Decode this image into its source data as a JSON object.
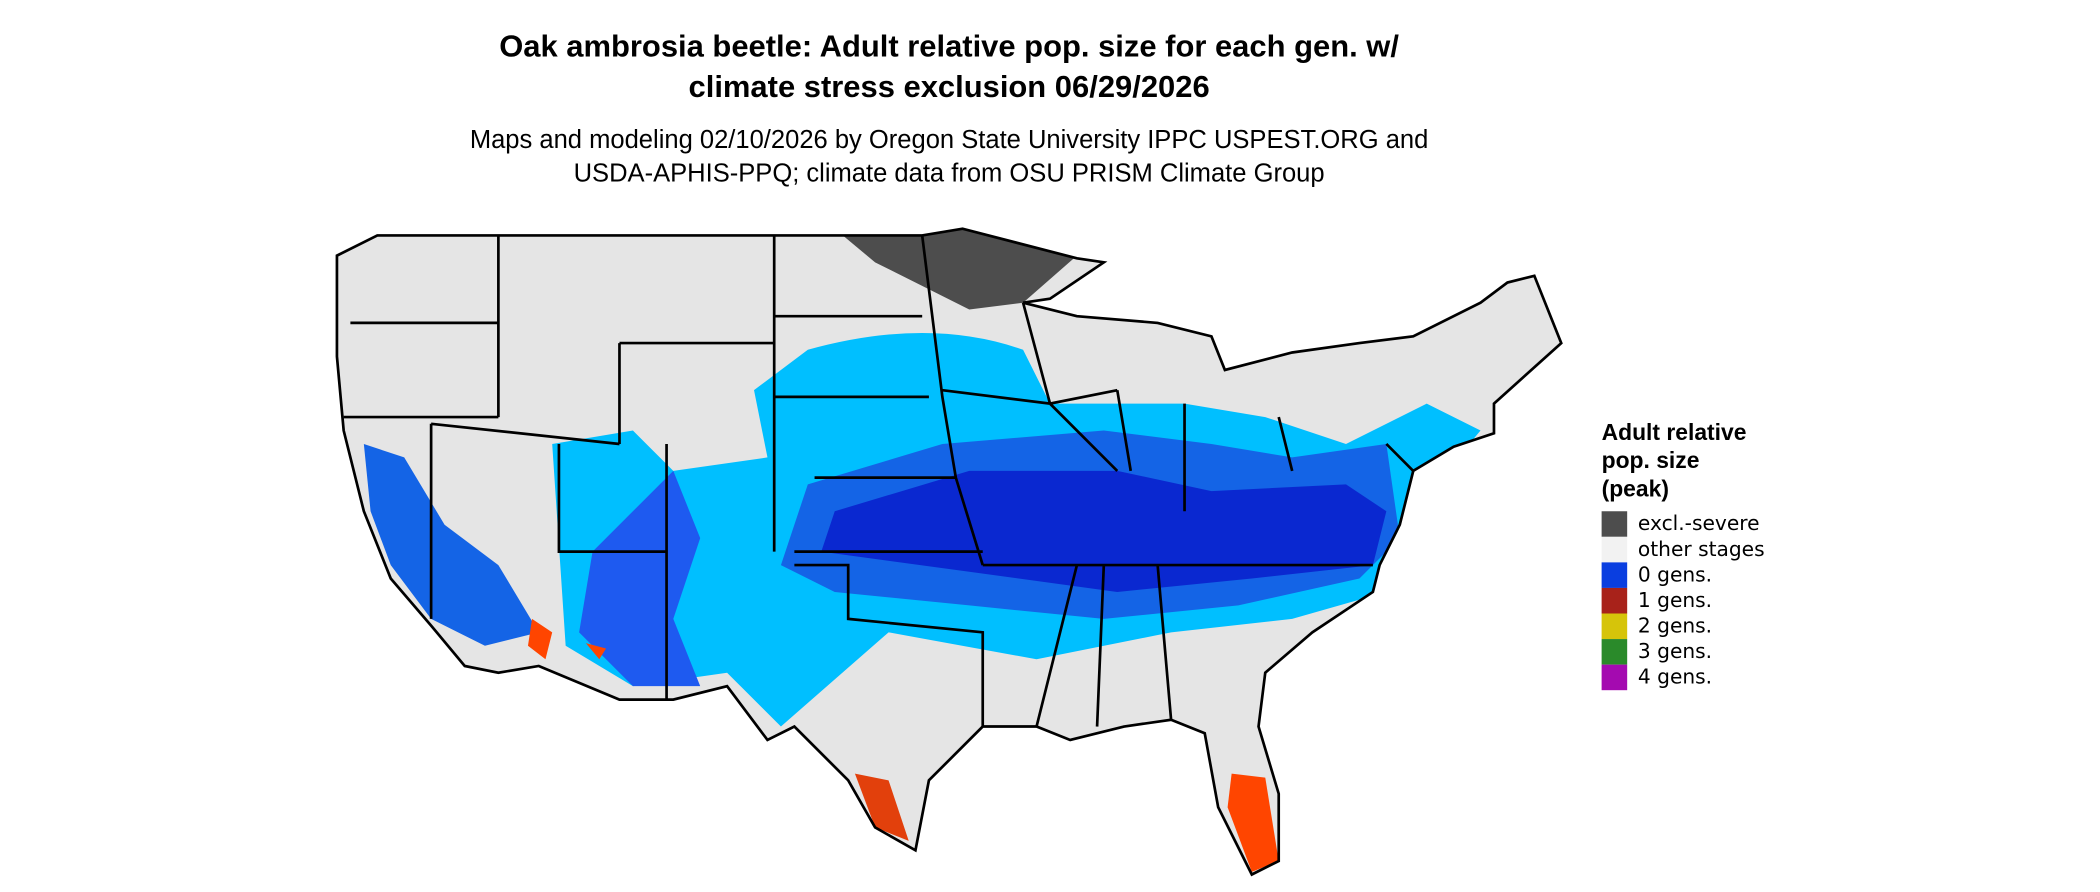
{
  "title": [
    "Oak ambrosia beetle: Adult relative pop. size for each gen. w/",
    "climate stress exclusion 06/29/2026"
  ],
  "subtitle": [
    "Maps and modeling 02/10/2026 by Oregon State University IPPC USPEST.ORG and",
    "USDA-APHIS-PPQ; climate data from OSU PRISM Climate Group"
  ],
  "legend": {
    "title": [
      "Adult relative",
      "pop. size",
      "(peak)"
    ],
    "items": [
      {
        "label": "excl.-severe",
        "color": "#4d4d4d"
      },
      {
        "label": "other stages",
        "color": "#f2f2f2"
      },
      {
        "label": "0 gens.",
        "color": "#0a3ee0"
      },
      {
        "label": "1 gens.",
        "color": "#a8221a"
      },
      {
        "label": "2 gens.",
        "color": "#d6c40a"
      },
      {
        "label": "3 gens.",
        "color": "#2a8a2a"
      },
      {
        "label": "4 gens.",
        "color": "#a40ab0"
      }
    ]
  }
}
